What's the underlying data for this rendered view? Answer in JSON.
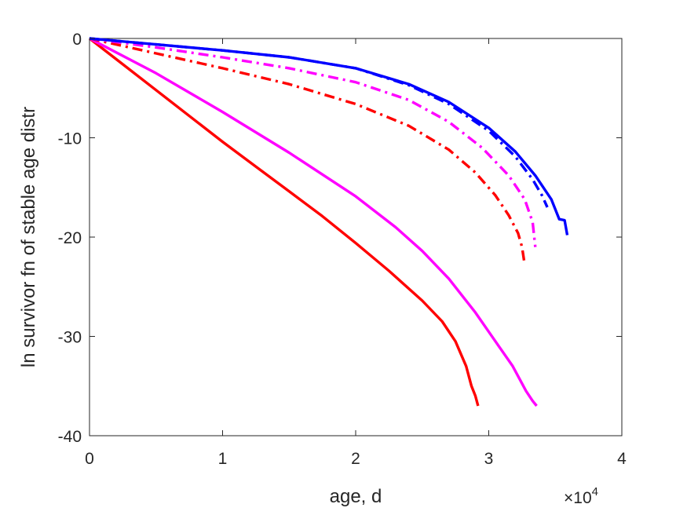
{
  "chart_data": {
    "type": "line",
    "xlabel": "age, d",
    "ylabel": "ln survivor fn of stable age distr",
    "x_multiplier_base": "×10",
    "x_multiplier_exponent": "4",
    "xlim": [
      0,
      40000
    ],
    "ylim": [
      -40,
      0
    ],
    "xticks": [
      0,
      10000,
      20000,
      30000,
      40000
    ],
    "xtick_labels": [
      "0",
      "1",
      "2",
      "3",
      "4"
    ],
    "yticks": [
      0,
      -10,
      -20,
      -30,
      -40
    ],
    "ytick_labels": [
      "0",
      "-10",
      "-20",
      "-30",
      "-40"
    ],
    "grid": false,
    "series": [
      {
        "color": "#ff0000",
        "style": "solid",
        "points": [
          [
            0,
            0
          ],
          [
            2500,
            -2.6
          ],
          [
            5000,
            -5.2
          ],
          [
            7500,
            -7.8
          ],
          [
            10000,
            -10.4
          ],
          [
            12500,
            -12.9
          ],
          [
            15000,
            -15.4
          ],
          [
            17500,
            -17.9
          ],
          [
            20000,
            -20.6
          ],
          [
            22500,
            -23.4
          ],
          [
            25000,
            -26.4
          ],
          [
            26500,
            -28.5
          ],
          [
            27500,
            -30.5
          ],
          [
            28300,
            -33.0
          ],
          [
            28700,
            -35.0
          ],
          [
            29000,
            -36.0
          ],
          [
            29200,
            -37.0
          ]
        ]
      },
      {
        "color": "#ff00ff",
        "style": "solid",
        "points": [
          [
            0,
            0
          ],
          [
            5000,
            -3.5
          ],
          [
            10000,
            -7.4
          ],
          [
            15000,
            -11.5
          ],
          [
            20000,
            -15.9
          ],
          [
            23000,
            -19.0
          ],
          [
            25000,
            -21.4
          ],
          [
            27000,
            -24.2
          ],
          [
            29000,
            -27.6
          ],
          [
            30500,
            -30.5
          ],
          [
            31800,
            -33.0
          ],
          [
            32800,
            -35.5
          ],
          [
            33300,
            -36.5
          ],
          [
            33600,
            -37.0
          ]
        ]
      },
      {
        "color": "#ff0000",
        "style": "dashdot",
        "points": [
          [
            0,
            0
          ],
          [
            5000,
            -1.5
          ],
          [
            10000,
            -3.0
          ],
          [
            15000,
            -4.6
          ],
          [
            20000,
            -6.6
          ],
          [
            24000,
            -8.8
          ],
          [
            27000,
            -11.2
          ],
          [
            29000,
            -13.5
          ],
          [
            30500,
            -15.8
          ],
          [
            31500,
            -17.8
          ],
          [
            32200,
            -19.6
          ],
          [
            32500,
            -21.0
          ],
          [
            32700,
            -22.8
          ]
        ]
      },
      {
        "color": "#ff00ff",
        "style": "dashdot",
        "points": [
          [
            0,
            0
          ],
          [
            5000,
            -0.9
          ],
          [
            10000,
            -1.9
          ],
          [
            15000,
            -3.0
          ],
          [
            20000,
            -4.4
          ],
          [
            24000,
            -6.2
          ],
          [
            27000,
            -8.4
          ],
          [
            29500,
            -11.0
          ],
          [
            31500,
            -13.8
          ],
          [
            32700,
            -16.2
          ],
          [
            33300,
            -18.5
          ],
          [
            33500,
            -21.0
          ]
        ]
      },
      {
        "color": "#0000ff",
        "style": "dashdot",
        "points": [
          [
            0,
            0
          ],
          [
            5000,
            -0.6
          ],
          [
            10000,
            -1.2
          ],
          [
            15000,
            -1.9
          ],
          [
            20000,
            -3.0
          ],
          [
            24000,
            -4.7
          ],
          [
            27000,
            -6.6
          ],
          [
            30000,
            -9.3
          ],
          [
            32000,
            -11.9
          ],
          [
            33300,
            -14.2
          ],
          [
            34000,
            -15.8
          ],
          [
            34400,
            -17.0
          ]
        ]
      },
      {
        "color": "#0000ff",
        "style": "solid",
        "points": [
          [
            0,
            0
          ],
          [
            5000,
            -0.6
          ],
          [
            10000,
            -1.2
          ],
          [
            15000,
            -1.9
          ],
          [
            20000,
            -3.0
          ],
          [
            24000,
            -4.6
          ],
          [
            27000,
            -6.4
          ],
          [
            30000,
            -9.0
          ],
          [
            32000,
            -11.4
          ],
          [
            33500,
            -13.8
          ],
          [
            34700,
            -16.2
          ],
          [
            35300,
            -18.2
          ],
          [
            35700,
            -18.3
          ],
          [
            35900,
            -19.8
          ]
        ]
      }
    ]
  }
}
